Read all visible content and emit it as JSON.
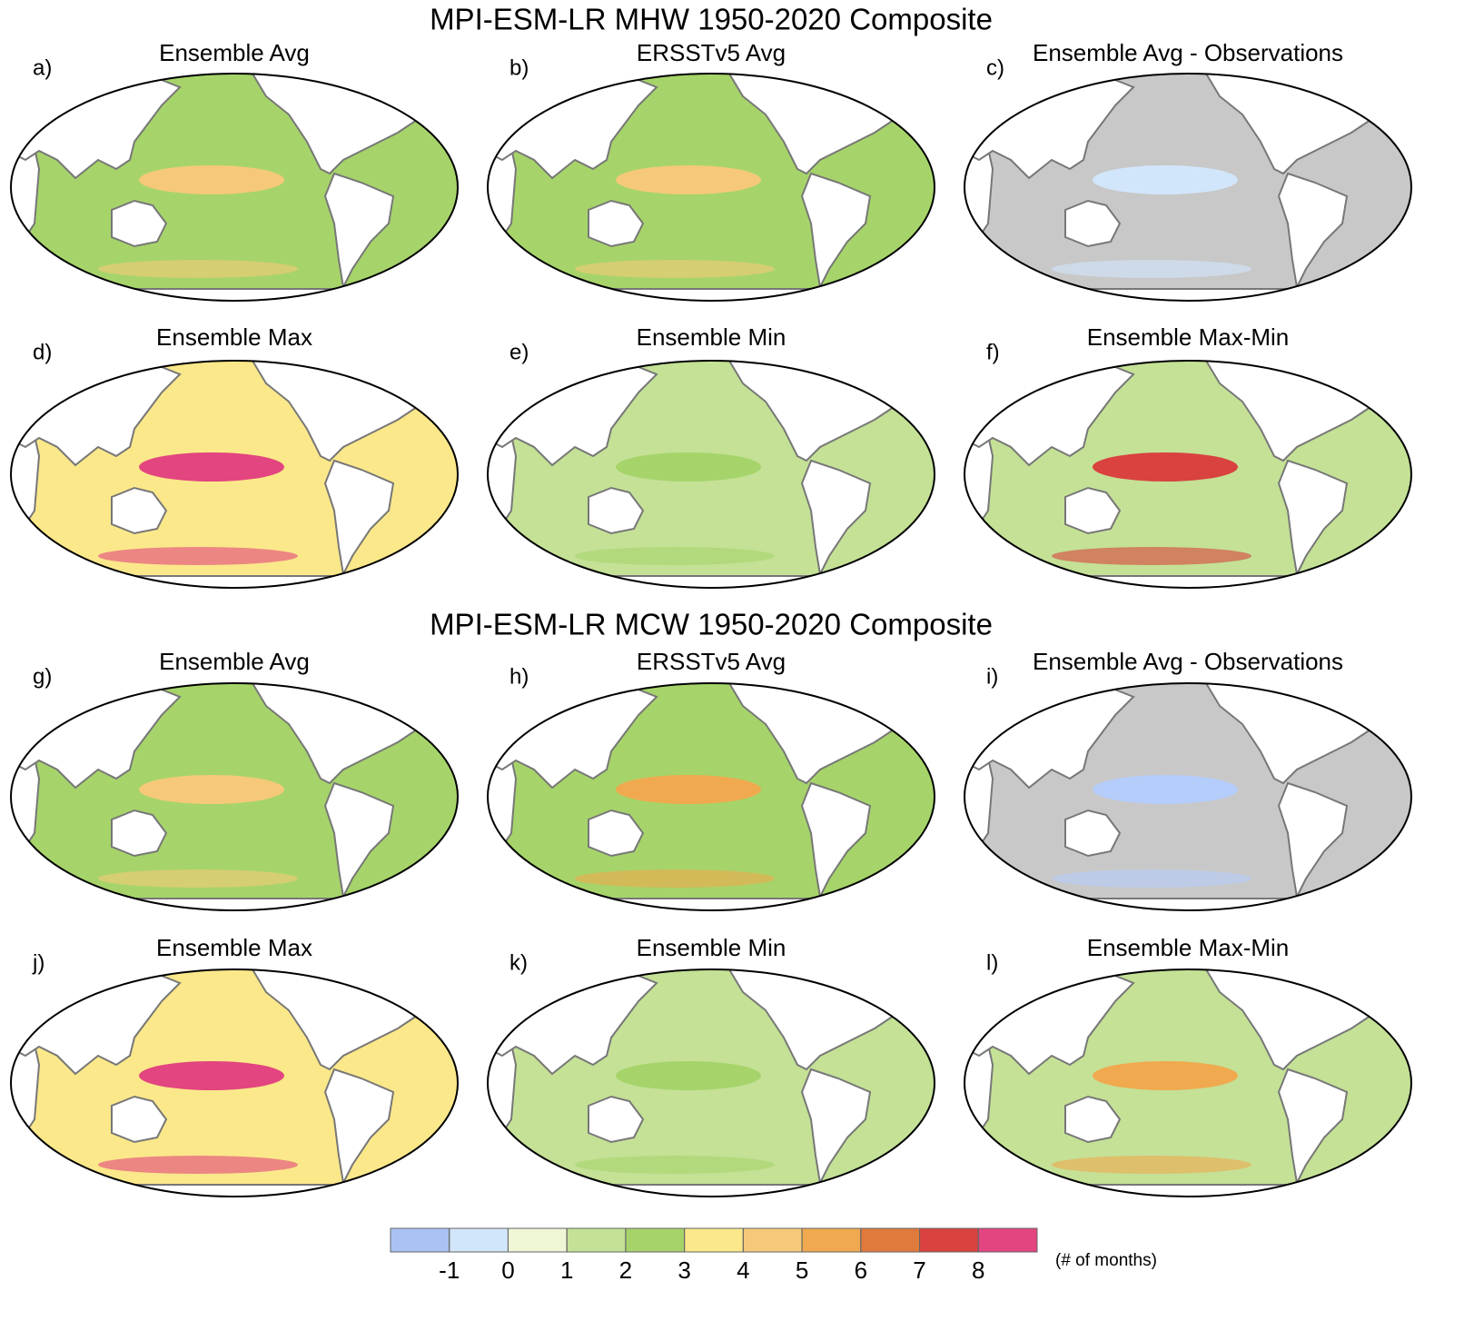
{
  "title_top": "MPI-ESM-LR MHW 1950-2020 Composite",
  "title_bottom": "MPI-ESM-LR MCW 1950-2020 Composite",
  "panels": [
    {
      "label": "a)",
      "title": "Ensemble Avg",
      "colors": [
        "#a6d46a",
        "#f5c979"
      ]
    },
    {
      "label": "b)",
      "title": "ERSSTv5 Avg",
      "colors": [
        "#a6d46a",
        "#f5c979"
      ]
    },
    {
      "label": "c)",
      "title": "Ensemble Avg - Observations",
      "colors": [
        "#c8c8c8",
        "#d2e6fb"
      ]
    },
    {
      "label": "d)",
      "title": "Ensemble Max",
      "colors": [
        "#fbe88a",
        "#e2457f"
      ]
    },
    {
      "label": "e)",
      "title": "Ensemble Min",
      "colors": [
        "#c4e196",
        "#a6d46a"
      ]
    },
    {
      "label": "f)",
      "title": "Ensemble Max-Min",
      "colors": [
        "#c4e196",
        "#d9423e"
      ]
    },
    {
      "label": "g)",
      "title": "Ensemble Avg",
      "colors": [
        "#a6d46a",
        "#f5c979"
      ]
    },
    {
      "label": "h)",
      "title": "ERSSTv5 Avg",
      "colors": [
        "#a6d46a",
        "#f0a94e"
      ]
    },
    {
      "label": "i)",
      "title": "Ensemble Avg - Observations",
      "colors": [
        "#c8c8c8",
        "#b5cdfa"
      ]
    },
    {
      "label": "j)",
      "title": "Ensemble Max",
      "colors": [
        "#fbe88a",
        "#e2457f"
      ]
    },
    {
      "label": "k)",
      "title": "Ensemble Min",
      "colors": [
        "#c4e196",
        "#a6d46a"
      ]
    },
    {
      "label": "l)",
      "title": "Ensemble Max-Min",
      "colors": [
        "#c4e196",
        "#f0a94e"
      ]
    }
  ],
  "colorbar": {
    "colors": [
      "#a9c3f5",
      "#d2e6fb",
      "#eef6d6",
      "#c4e196",
      "#a6d46a",
      "#fbe88a",
      "#f5c979",
      "#f0a94e",
      "#e07a3c",
      "#d9423e",
      "#e2457f"
    ],
    "ticks": [
      -1,
      0,
      1,
      2,
      3,
      4,
      5,
      6,
      7,
      8
    ],
    "label": "(# of months)"
  }
}
